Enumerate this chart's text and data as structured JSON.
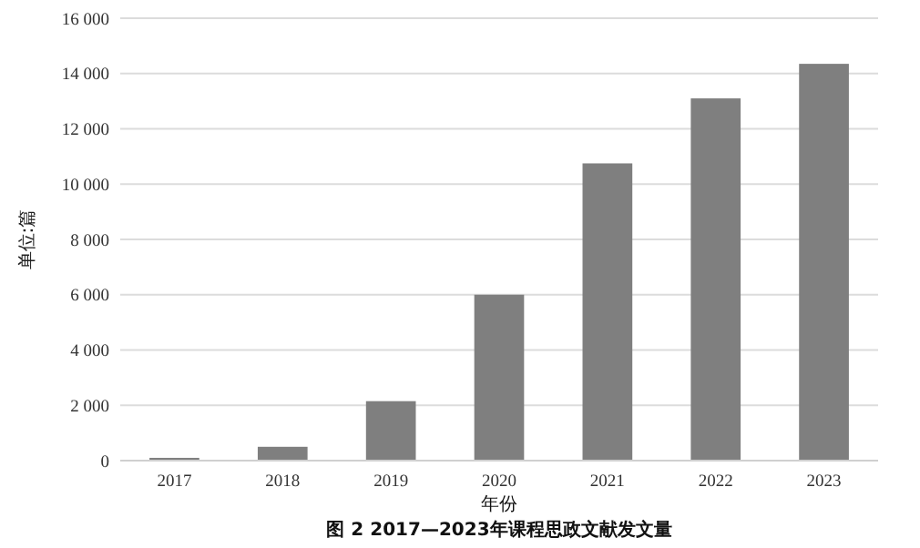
{
  "chart_data": {
    "type": "bar",
    "title": "图 2 2017—2023年课程思政文献发文量",
    "xlabel": "年份",
    "ylabel": "单位:篇",
    "categories": [
      "2017",
      "2018",
      "2019",
      "2020",
      "2021",
      "2022",
      "2023"
    ],
    "values": [
      100,
      500,
      2150,
      6000,
      10750,
      13100,
      14350
    ],
    "color": "#7f7f7f",
    "ylim": [
      0,
      16000
    ],
    "yticks": [
      {
        "value": 0,
        "label": "0"
      },
      {
        "value": 2000,
        "label": "2 000"
      },
      {
        "value": 4000,
        "label": "4 000"
      },
      {
        "value": 6000,
        "label": "6 000"
      },
      {
        "value": 8000,
        "label": "8 000"
      },
      {
        "value": 10000,
        "label": "10 000"
      },
      {
        "value": 12000,
        "label": "12 000"
      },
      {
        "value": 14000,
        "label": "14 000"
      },
      {
        "value": 16000,
        "label": "16 000"
      }
    ],
    "grid": "y"
  }
}
